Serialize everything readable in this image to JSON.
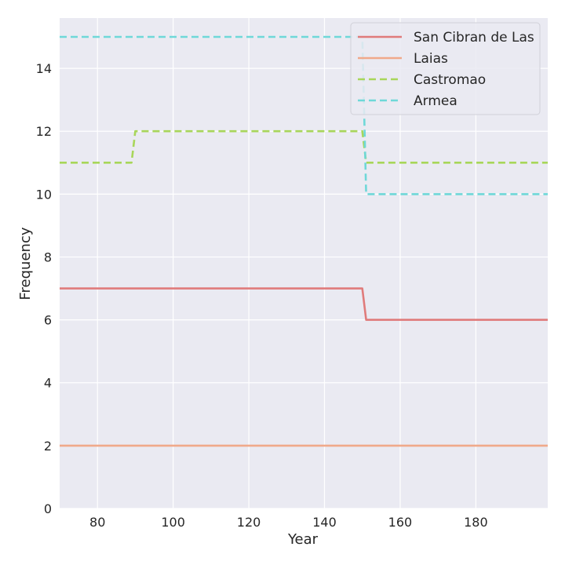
{
  "chart_data": {
    "type": "line",
    "title": "",
    "xlabel": "Year",
    "ylabel": "Frequency",
    "xlim": [
      70,
      199
    ],
    "ylim": [
      0,
      15.6
    ],
    "xticks": [
      80,
      100,
      120,
      140,
      160,
      180
    ],
    "yticks": [
      0,
      2,
      4,
      6,
      8,
      10,
      12,
      14
    ],
    "grid": true,
    "legend_position": "top-right",
    "series": [
      {
        "name": "San Cibran de Las",
        "color": "#e07b7b",
        "style": "solid",
        "x": [
          70,
          150,
          151,
          199
        ],
        "y": [
          7,
          7,
          6,
          6
        ]
      },
      {
        "name": "Laias",
        "color": "#f0a98a",
        "style": "solid",
        "x": [
          70,
          199
        ],
        "y": [
          2,
          2
        ]
      },
      {
        "name": "Castromao",
        "color": "#a8d65a",
        "style": "dashed",
        "x": [
          70,
          89,
          90,
          150,
          151,
          199
        ],
        "y": [
          11,
          11,
          12,
          12,
          11,
          11
        ]
      },
      {
        "name": "Armea",
        "color": "#6fd8d8",
        "style": "dashed",
        "x": [
          70,
          150,
          151,
          199
        ],
        "y": [
          15,
          15,
          10,
          10
        ]
      }
    ]
  }
}
